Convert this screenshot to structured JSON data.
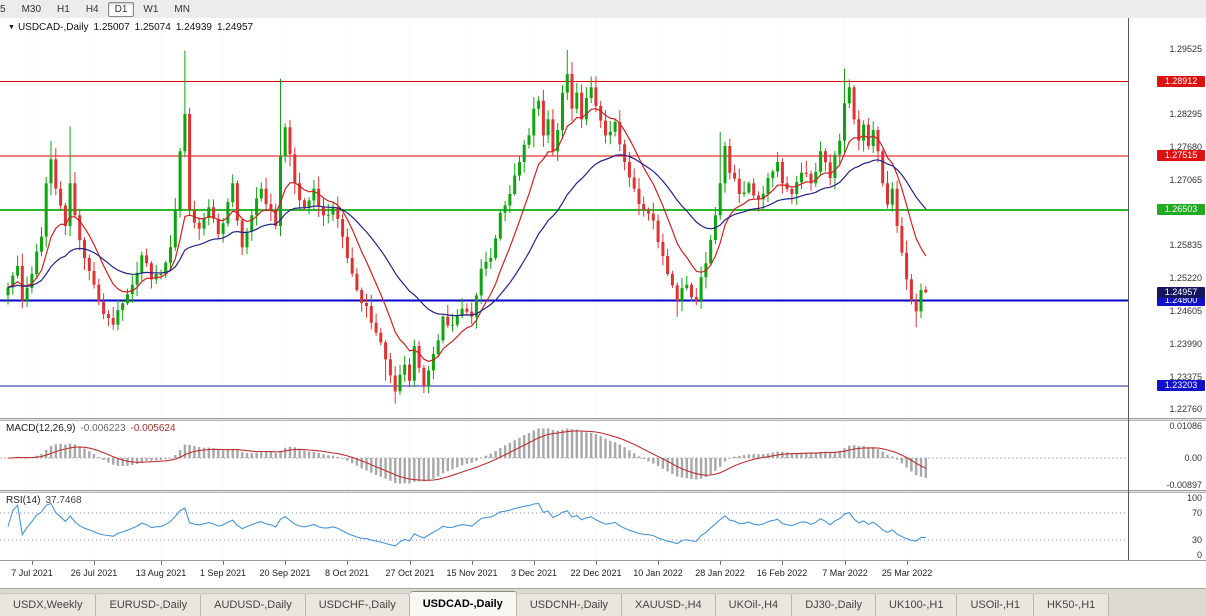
{
  "app": {
    "title": "MetaTrader - USDCAD Daily chart"
  },
  "toolbar": {
    "timeframes": [
      {
        "label": "5",
        "active": false
      },
      {
        "label": "M30",
        "active": false
      },
      {
        "label": "H1",
        "active": false
      },
      {
        "label": "H4",
        "active": false
      },
      {
        "label": "D1",
        "active": true
      },
      {
        "label": "W1",
        "active": false
      },
      {
        "label": "MN",
        "active": false
      }
    ]
  },
  "chart": {
    "header": {
      "symbol": "USDCAD-,Daily",
      "open": "1.25007",
      "high": "1.25074",
      "low": "1.24939",
      "close": "1.24957"
    }
  },
  "chart_data": {
    "type": "candlestick",
    "symbol": "USDCAD",
    "timeframe": "Daily",
    "price_panel": {
      "ymin": 1.226,
      "ymax": 1.301,
      "ticks": [
        "1.29525",
        "1.28295",
        "1.27680",
        "1.27065",
        "1.26450",
        "1.25835",
        "1.25220",
        "1.24605",
        "1.23990",
        "1.23375",
        "1.22760"
      ],
      "hlines": [
        {
          "price": 1.28912,
          "color": "#e00000",
          "width": 1
        },
        {
          "price": 1.27515,
          "color": "#e00000",
          "width": 1
        },
        {
          "price": 1.26503,
          "color": "#2db82d",
          "width": 2
        },
        {
          "price": 1.248,
          "color": "#0000c8",
          "width": 2
        },
        {
          "price": 1.23203,
          "color": "#2020a8",
          "width": 1
        }
      ],
      "badges": [
        {
          "label": "1.28912",
          "price": 1.28912,
          "bg": "#dd1111",
          "name": "resistance-badge-1"
        },
        {
          "label": "1.27515",
          "price": 1.27515,
          "bg": "#dd1111",
          "name": "resistance-badge-2"
        },
        {
          "label": "1.26503",
          "price": 1.26503,
          "bg": "#22aa22",
          "name": "green-level-badge"
        },
        {
          "label": "1.24800",
          "price": 1.248,
          "bg": "#1111cc",
          "name": "support-badge-1"
        },
        {
          "label": "1.23203",
          "price": 1.23203,
          "bg": "#1111cc",
          "name": "support-badge-2"
        },
        {
          "label": "1.24957",
          "price": 1.24957,
          "bg": "#151560",
          "name": "current-price-badge"
        }
      ],
      "anchors": [
        [
          0,
          1.2505
        ],
        [
          2,
          1.2545
        ],
        [
          3,
          1.248
        ],
        [
          5,
          1.253
        ],
        [
          7,
          1.26
        ],
        [
          8,
          1.27
        ],
        [
          9,
          1.2745
        ],
        [
          10,
          1.269
        ],
        [
          12,
          1.262
        ],
        [
          13,
          1.27
        ],
        [
          14,
          1.264
        ],
        [
          16,
          1.256
        ],
        [
          18,
          1.251
        ],
        [
          20,
          1.2455
        ],
        [
          22,
          1.2435
        ],
        [
          24,
          1.2475
        ],
        [
          26,
          1.251
        ],
        [
          28,
          1.2565
        ],
        [
          30,
          1.252
        ],
        [
          32,
          1.253
        ],
        [
          34,
          1.258
        ],
        [
          35,
          1.265
        ],
        [
          36,
          1.276
        ],
        [
          37,
          1.283
        ],
        [
          38,
          1.265
        ],
        [
          40,
          1.2615
        ],
        [
          42,
          1.2655
        ],
        [
          44,
          1.2605
        ],
        [
          45,
          1.2625
        ],
        [
          47,
          1.27
        ],
        [
          49,
          1.258
        ],
        [
          51,
          1.264
        ],
        [
          53,
          1.269
        ],
        [
          55,
          1.265
        ],
        [
          56,
          1.262
        ],
        [
          57,
          1.275
        ],
        [
          58,
          1.2805
        ],
        [
          60,
          1.27
        ],
        [
          62,
          1.2655
        ],
        [
          64,
          1.269
        ],
        [
          66,
          1.264
        ],
        [
          68,
          1.2655
        ],
        [
          70,
          1.26
        ],
        [
          71,
          1.256
        ],
        [
          73,
          1.25
        ],
        [
          75,
          1.247
        ],
        [
          77,
          1.242
        ],
        [
          79,
          1.237
        ],
        [
          81,
          1.231
        ],
        [
          83,
          1.236
        ],
        [
          84,
          1.233
        ],
        [
          85,
          1.2395
        ],
        [
          87,
          1.232
        ],
        [
          89,
          1.238
        ],
        [
          91,
          1.245
        ],
        [
          93,
          1.2435
        ],
        [
          95,
          1.2465
        ],
        [
          97,
          1.245
        ],
        [
          99,
          1.254
        ],
        [
          101,
          1.256
        ],
        [
          103,
          1.2645
        ],
        [
          105,
          1.268
        ],
        [
          107,
          1.274
        ],
        [
          109,
          1.279
        ],
        [
          110,
          1.284
        ],
        [
          111,
          1.2855
        ],
        [
          112,
          1.279
        ],
        [
          113,
          1.282
        ],
        [
          114,
          1.276
        ],
        [
          115,
          1.28
        ],
        [
          116,
          1.287
        ],
        [
          117,
          1.2905
        ],
        [
          118,
          1.284
        ],
        [
          119,
          1.287
        ],
        [
          120,
          1.282
        ],
        [
          121,
          1.286
        ],
        [
          122,
          1.288
        ],
        [
          123,
          1.2845
        ],
        [
          125,
          1.279
        ],
        [
          127,
          1.2815
        ],
        [
          129,
          1.274
        ],
        [
          131,
          1.269
        ],
        [
          133,
          1.265
        ],
        [
          135,
          1.263
        ],
        [
          136,
          1.259
        ],
        [
          138,
          1.253
        ],
        [
          140,
          1.248
        ],
        [
          142,
          1.251
        ],
        [
          144,
          1.248
        ],
        [
          146,
          1.255
        ],
        [
          148,
          1.264
        ],
        [
          149,
          1.27
        ],
        [
          150,
          1.277
        ],
        [
          151,
          1.272
        ],
        [
          153,
          1.268
        ],
        [
          155,
          1.27
        ],
        [
          157,
          1.267
        ],
        [
          159,
          1.271
        ],
        [
          161,
          1.274
        ],
        [
          162,
          1.27
        ],
        [
          164,
          1.268
        ],
        [
          166,
          1.272
        ],
        [
          168,
          1.27
        ],
        [
          170,
          1.276
        ],
        [
          172,
          1.271
        ],
        [
          174,
          1.278
        ],
        [
          175,
          1.285
        ],
        [
          176,
          1.288
        ],
        [
          177,
          1.282
        ],
        [
          178,
          1.278
        ],
        [
          179,
          1.281
        ],
        [
          180,
          1.277
        ],
        [
          181,
          1.28
        ],
        [
          182,
          1.276
        ],
        [
          183,
          1.27
        ],
        [
          184,
          1.266
        ],
        [
          185,
          1.269
        ],
        [
          186,
          1.262
        ],
        [
          187,
          1.257
        ],
        [
          188,
          1.252
        ],
        [
          189,
          1.248
        ],
        [
          190,
          1.246
        ],
        [
          191,
          1.25
        ],
        [
          192,
          1.24957
        ]
      ],
      "wicks": {
        "9": {
          "h": 1.278
        },
        "13": {
          "h": 1.2807
        },
        "37": {
          "h": 1.2949
        },
        "57": {
          "h": 1.2896
        },
        "79": {
          "l": 1.233
        },
        "81": {
          "l": 1.2287
        },
        "117": {
          "h": 1.295
        },
        "140": {
          "l": 1.245
        },
        "149": {
          "h": 1.2796
        },
        "175": {
          "h": 1.2915
        },
        "190": {
          "l": 1.243
        }
      },
      "last_candle": {
        "o": 1.25007,
        "h": 1.25074,
        "l": 1.24939,
        "c": 1.24957
      },
      "ma_fast_period": 10,
      "ma_slow_period": 30,
      "colors": {
        "up": "#0fa30f",
        "down": "#dd3333",
        "ma_fast": "#cc2222",
        "ma_slow": "#222288"
      }
    },
    "macd_panel": {
      "label": "MACD(12,26,9)",
      "values": [
        "-0.006223",
        "-0.005624"
      ],
      "ymin": -0.0102,
      "ymax": 0.0118,
      "ticks": [
        {
          "v": 0.01086,
          "label": "0.01086"
        },
        {
          "v": 0,
          "label": "0.00"
        },
        {
          "v": -0.00897,
          "label": "-0.00897"
        }
      ],
      "colors": {
        "hist": "#a8a8a8",
        "signal": "#bb3333"
      }
    },
    "rsi_panel": {
      "label": "RSI(14)",
      "value": "37.7468",
      "ymin": 0,
      "ymax": 100,
      "ticks": [
        {
          "v": 100,
          "label": "100"
        },
        {
          "v": 70,
          "label": "70"
        },
        {
          "v": 30,
          "label": "30"
        },
        {
          "v": 0,
          "label": "0"
        }
      ],
      "levels": [
        70,
        30
      ],
      "colors": {
        "line": "#4a96d2",
        "level": "#8a8acc"
      }
    },
    "x_axis": {
      "days_total": 193,
      "tick_days": [
        5,
        18,
        32,
        45,
        58,
        71,
        84,
        97,
        110,
        123,
        136,
        149,
        162,
        175,
        188
      ],
      "labels": [
        "7 Jul 2021",
        "26 Jul 2021",
        "13 Aug 2021",
        "1 Sep 2021",
        "20 Sep 2021",
        "8 Oct 2021",
        "27 Oct 2021",
        "15 Nov 2021",
        "3 Dec 2021",
        "22 Dec 2021",
        "10 Jan 2022",
        "28 Jan 2022",
        "16 Feb 2022",
        "7 Mar 2022",
        "25 Mar 2022"
      ]
    }
  },
  "tabs": [
    {
      "label": "USDX,Weekly",
      "active": false
    },
    {
      "label": "EURUSD-,Daily",
      "active": false
    },
    {
      "label": "AUDUSD-,Daily",
      "active": false
    },
    {
      "label": "USDCHF-,Daily",
      "active": false
    },
    {
      "label": "USDCAD-,Daily",
      "active": true
    },
    {
      "label": "USDCNH-,Daily",
      "active": false
    },
    {
      "label": "XAUUSD-,H4",
      "active": false
    },
    {
      "label": "UKOil-,H4",
      "active": false
    },
    {
      "label": "DJ30-,Daily",
      "active": false
    },
    {
      "label": "UK100-,H1",
      "active": false
    },
    {
      "label": "USOil-,H1",
      "active": false
    },
    {
      "label": "HK50-,H1",
      "active": false
    }
  ]
}
